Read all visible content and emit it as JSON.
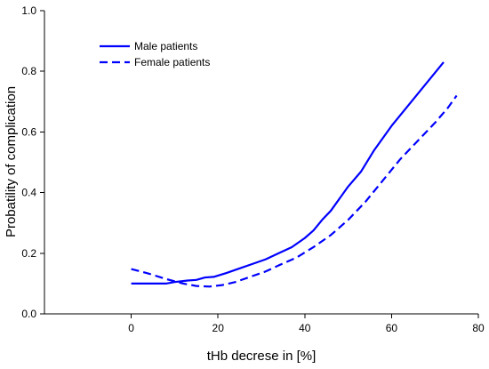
{
  "chart_data": {
    "type": "line",
    "title": "",
    "xlabel": "tHb decrese in [%]",
    "ylabel": "Probatility of complication",
    "xlim": [
      -20,
      80
    ],
    "ylim": [
      0.0,
      1.0
    ],
    "xticks": [
      "0",
      "20",
      "40",
      "60",
      "80"
    ],
    "yticks": [
      "0.0",
      "0.2",
      "0.4",
      "0.6",
      "0.8",
      "1.0"
    ],
    "grid": false,
    "legend_position": "top-left",
    "line_color": "#0000ff",
    "series": [
      {
        "name": "Male patients",
        "style": "solid",
        "points": [
          [
            0,
            0.1
          ],
          [
            4,
            0.1
          ],
          [
            8,
            0.1
          ],
          [
            10,
            0.105
          ],
          [
            13,
            0.11
          ],
          [
            15,
            0.112
          ],
          [
            17,
            0.12
          ],
          [
            19,
            0.122
          ],
          [
            22,
            0.135
          ],
          [
            25,
            0.15
          ],
          [
            28,
            0.165
          ],
          [
            31,
            0.18
          ],
          [
            34,
            0.2
          ],
          [
            37,
            0.22
          ],
          [
            40,
            0.25
          ],
          [
            42,
            0.275
          ],
          [
            44,
            0.31
          ],
          [
            46,
            0.34
          ],
          [
            48,
            0.38
          ],
          [
            50,
            0.42
          ],
          [
            53,
            0.47
          ],
          [
            56,
            0.54
          ],
          [
            60,
            0.62
          ],
          [
            64,
            0.69
          ],
          [
            68,
            0.76
          ],
          [
            72,
            0.83
          ]
        ]
      },
      {
        "name": "Female patients",
        "style": "dashed",
        "points": [
          [
            0,
            0.148
          ],
          [
            4,
            0.133
          ],
          [
            8,
            0.115
          ],
          [
            12,
            0.1
          ],
          [
            15,
            0.092
          ],
          [
            18,
            0.09
          ],
          [
            21,
            0.095
          ],
          [
            24,
            0.105
          ],
          [
            27,
            0.12
          ],
          [
            31,
            0.14
          ],
          [
            34,
            0.16
          ],
          [
            38,
            0.185
          ],
          [
            42,
            0.22
          ],
          [
            46,
            0.26
          ],
          [
            50,
            0.31
          ],
          [
            54,
            0.37
          ],
          [
            58,
            0.44
          ],
          [
            62,
            0.51
          ],
          [
            66,
            0.57
          ],
          [
            70,
            0.63
          ],
          [
            73,
            0.68
          ],
          [
            75,
            0.72
          ]
        ]
      }
    ]
  }
}
